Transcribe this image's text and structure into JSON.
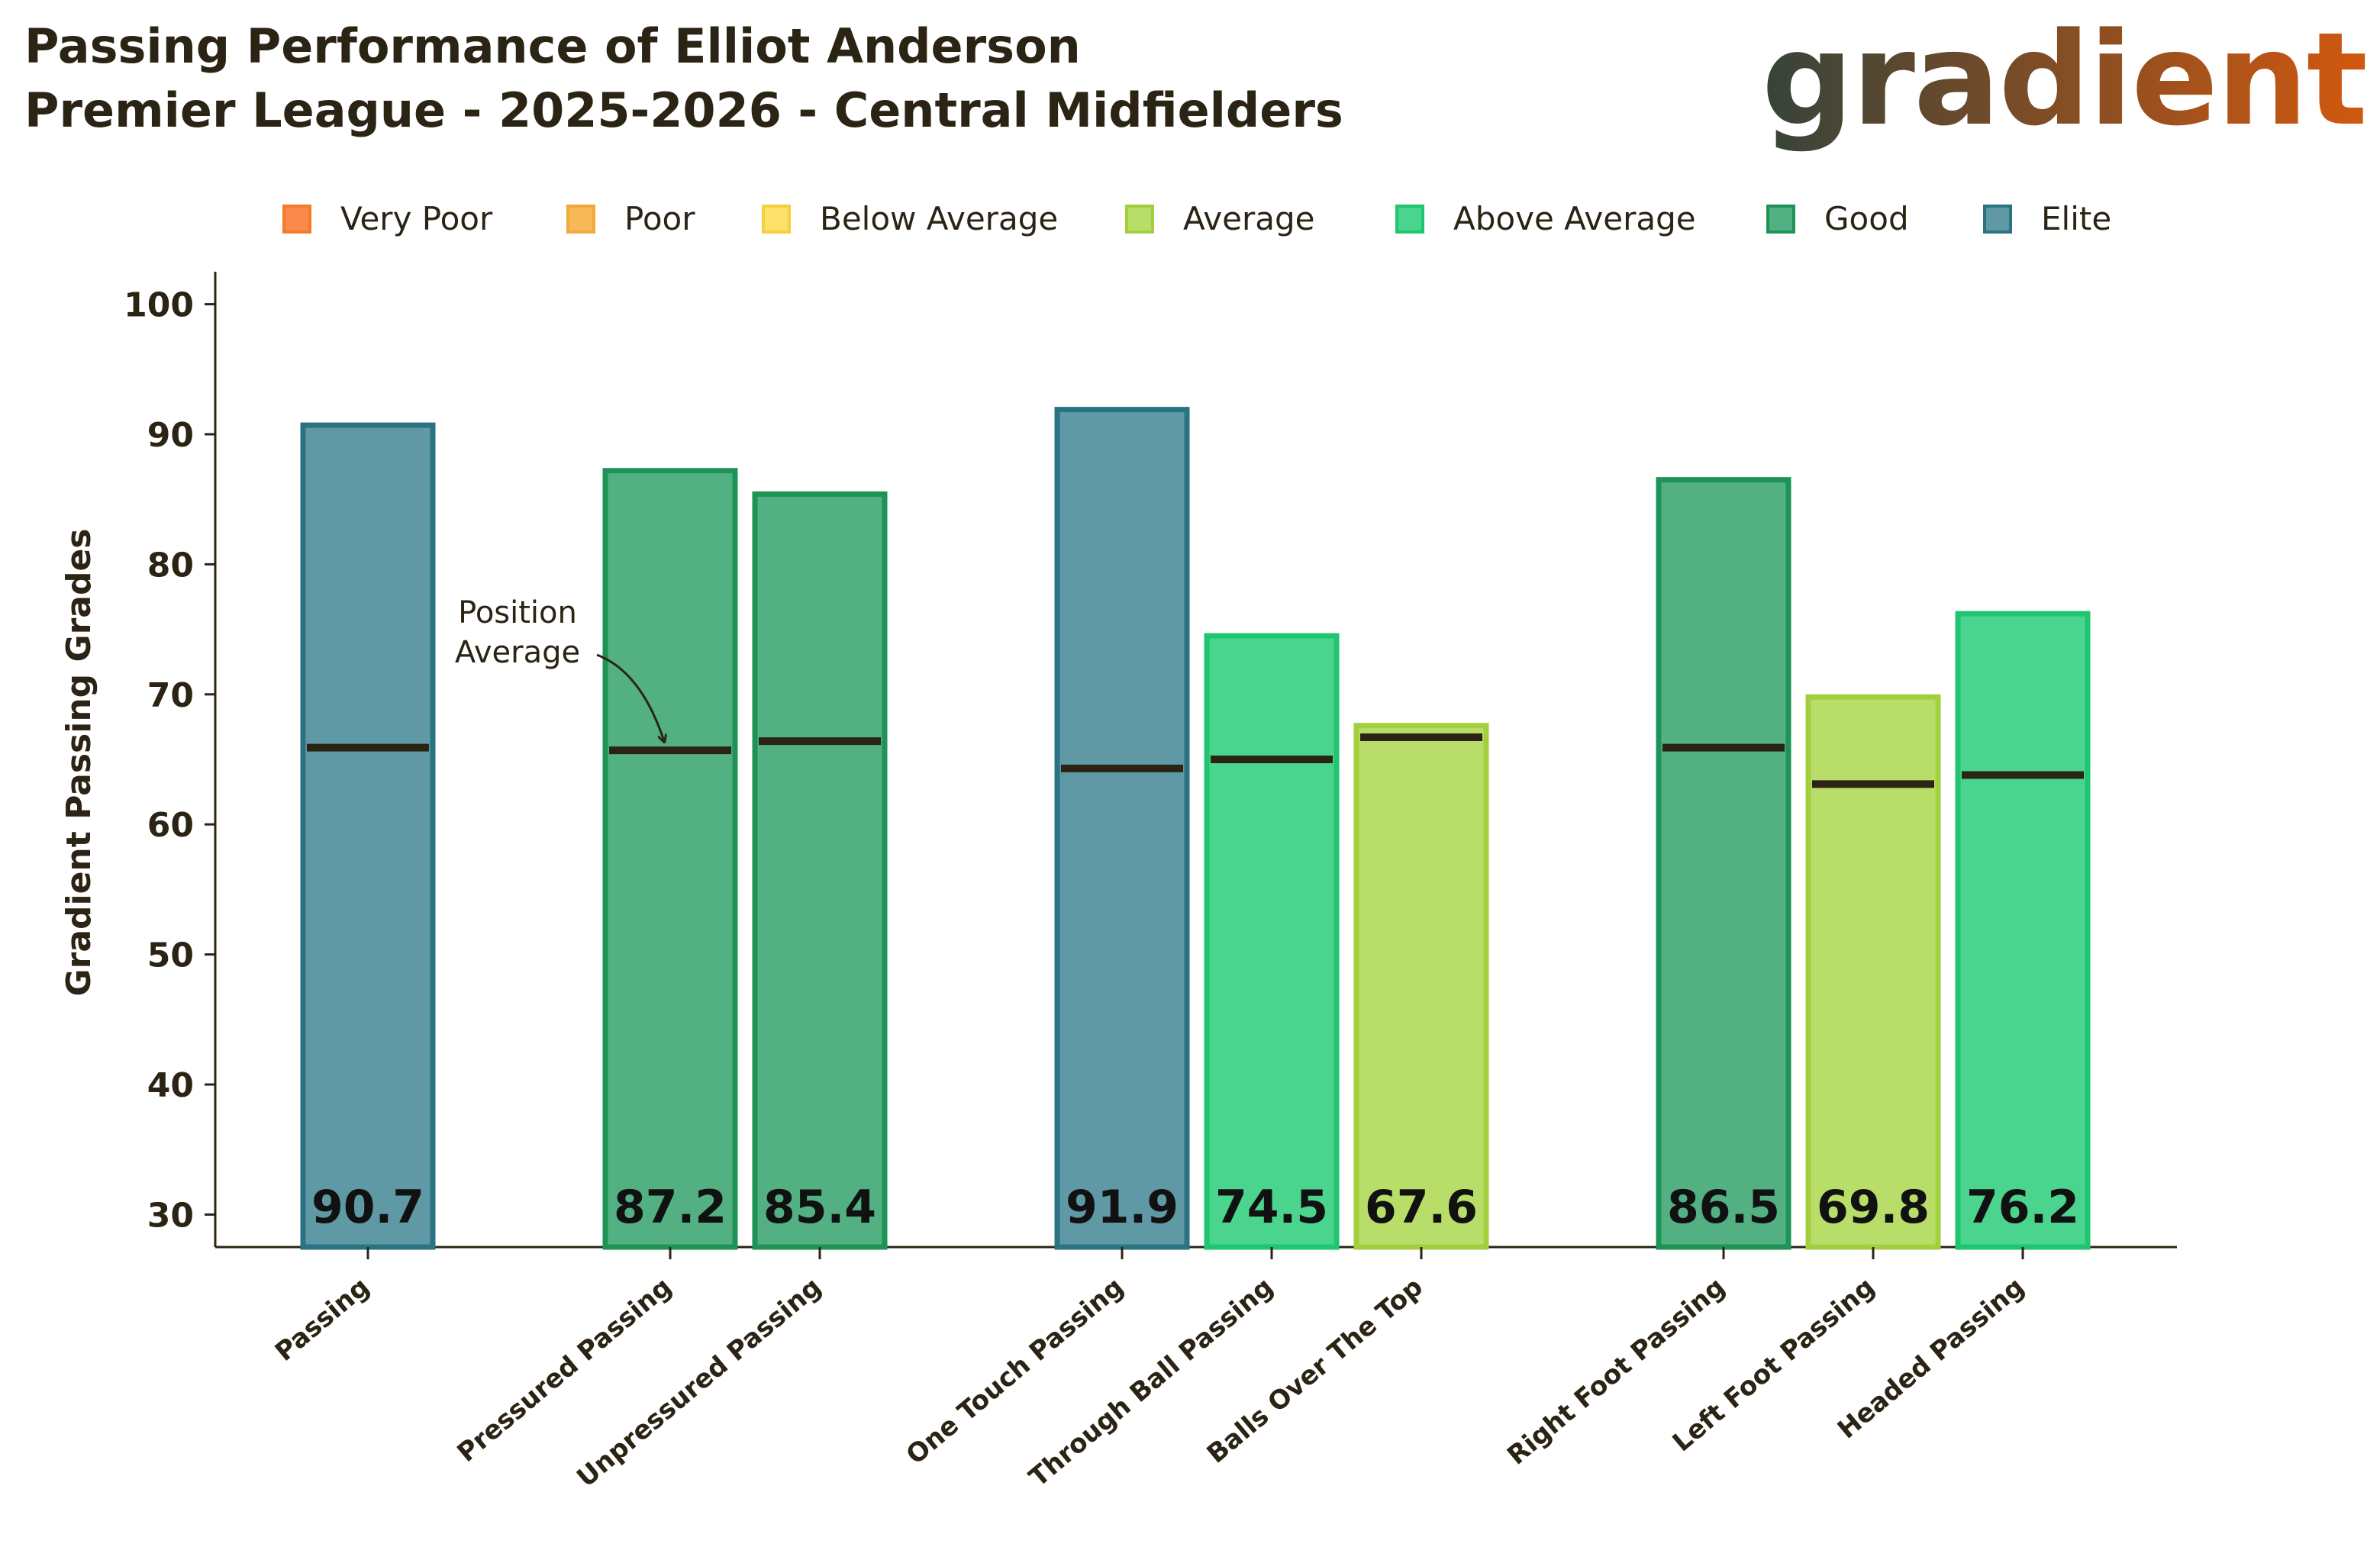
{
  "title_lines": [
    "Passing Performance of Elliot Anderson",
    "Premier League - 2025-2026 - Central Midfielders"
  ],
  "logo": {
    "text": "gradient",
    "gradient_start": "#36433a",
    "gradient_end": "#d2580f"
  },
  "legend": [
    {
      "label": "Very Poor",
      "fill": "#f98a4c",
      "stroke": "#f47b2c"
    },
    {
      "label": "Poor",
      "fill": "#f7b958",
      "stroke": "#f2a93b"
    },
    {
      "label": "Below Average",
      "fill": "#fbe06a",
      "stroke": "#f4d03f"
    },
    {
      "label": "Average",
      "fill": "#b8dd68",
      "stroke": "#a3cf3f"
    },
    {
      "label": "Above Average",
      "fill": "#4bd48d",
      "stroke": "#1fc56f"
    },
    {
      "label": "Good",
      "fill": "#52b082",
      "stroke": "#1f9356"
    },
    {
      "label": "Elite",
      "fill": "#5f99a6",
      "stroke": "#2b7283"
    }
  ],
  "chart_data": {
    "type": "bar",
    "ylabel": "Gradient Passing Grades",
    "xlabel": "",
    "ylim": [
      27.5,
      102.5
    ],
    "yticks": [
      30,
      40,
      50,
      60,
      70,
      80,
      90,
      100
    ],
    "categories": [
      "Passing",
      "Pressured Passing",
      "Unpressured Passing",
      "One Touch Passing",
      "Through Ball Passing",
      "Balls Over The Top",
      "Right Foot Passing",
      "Left Foot Passing",
      "Headed Passing"
    ],
    "values": [
      90.7,
      87.2,
      85.4,
      91.9,
      74.5,
      67.6,
      86.5,
      69.8,
      76.2
    ],
    "value_labels": [
      "90.7",
      "87.2",
      "85.4",
      "91.9",
      "74.5",
      "67.6",
      "86.5",
      "69.8",
      "76.2"
    ],
    "position_average": [
      65.9,
      65.7,
      66.4,
      64.3,
      65.0,
      66.7,
      65.9,
      63.1,
      63.8
    ],
    "tiers": [
      "Elite",
      "Good",
      "Good",
      "Elite",
      "Above Average",
      "Average",
      "Good",
      "Average",
      "Above Average"
    ],
    "groups": [
      [
        0
      ],
      [
        1,
        2
      ],
      [
        3,
        4,
        5
      ],
      [
        6,
        7,
        8
      ]
    ],
    "annotation": {
      "lines": [
        "Position",
        "Average"
      ],
      "target_index": 1
    },
    "grid": false,
    "legend_position": "top"
  }
}
